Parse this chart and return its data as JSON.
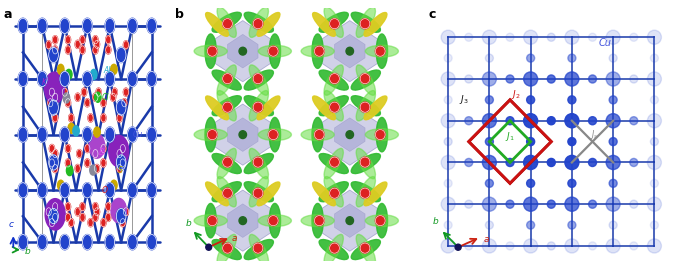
{
  "figsize": [
    6.85,
    2.72
  ],
  "dpi": 100,
  "bg_color": "#ffffff",
  "panel_labels": [
    "a",
    "b",
    "c"
  ],
  "bond_color": "#1a3aaa",
  "atom_blue": "#2244cc",
  "atom_blue_light": "#4466dd",
  "atom_red": "#dd2222",
  "atom_purple_large": "#8822bb",
  "atom_purple_med": "#aa44cc",
  "atom_yellow": "#ccaa00",
  "atom_green": "#22bb22",
  "atom_cyan": "#22aacc",
  "atom_gray": "#888899",
  "cu_label_color": "#4455dd",
  "al_label_color": "#22aacc",
  "k_label_color": "#aa22cc",
  "cl_label_color": "#22bb22",
  "bi_label_color": "#dd44ee",
  "s_label_color": "#aaaa00",
  "o_label_color": "#dd2222",
  "j1_color": "#22aa22",
  "j2_color": "#cc1111",
  "j3_color": "#111111",
  "js_color": "#888888",
  "axis_blue": "#1133cc",
  "axis_green": "#119922",
  "axis_red": "#cc2211"
}
